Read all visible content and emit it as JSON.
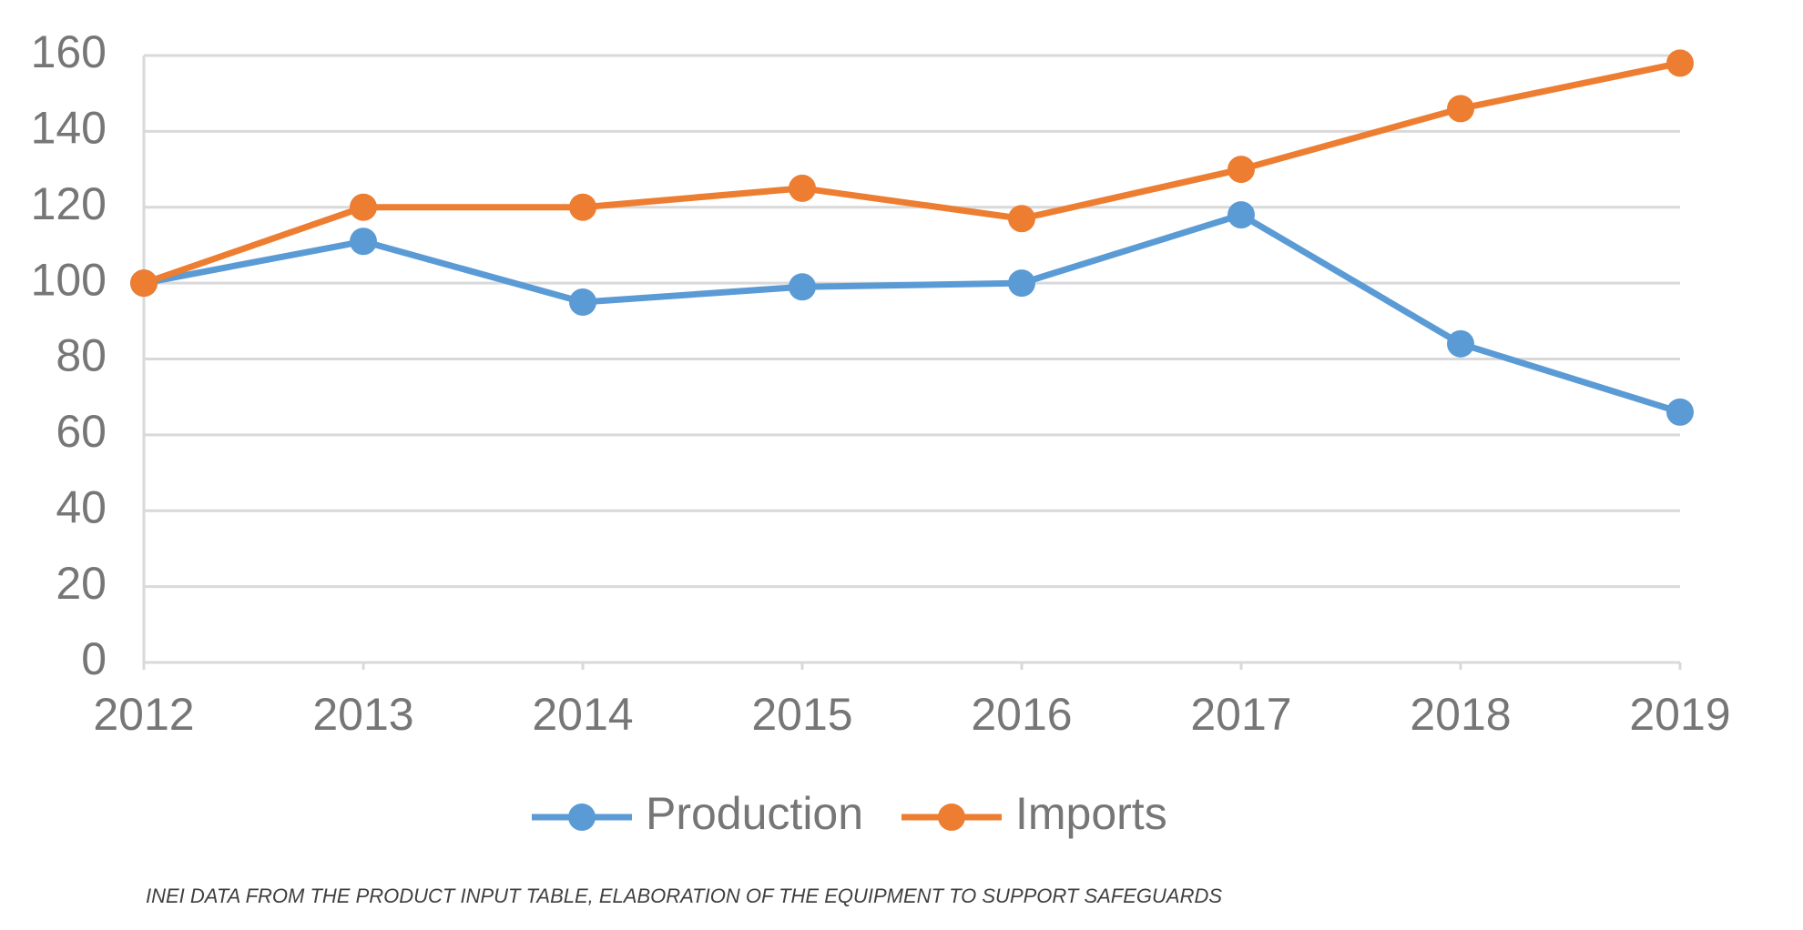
{
  "chart_data": {
    "type": "line",
    "categories": [
      "2012",
      "2013",
      "2014",
      "2015",
      "2016",
      "2017",
      "2018",
      "2019"
    ],
    "series": [
      {
        "name": "Production",
        "color": "#5b9bd5",
        "values": [
          100,
          111,
          95,
          99,
          100,
          118,
          84,
          66
        ]
      },
      {
        "name": "Imports",
        "color": "#ed7d31",
        "values": [
          100,
          120,
          120,
          125,
          117,
          130,
          146,
          158
        ]
      }
    ],
    "ylim": [
      0,
      160
    ],
    "yticks": [
      0,
      20,
      40,
      60,
      80,
      100,
      120,
      140,
      160
    ],
    "grid": true,
    "legend": "bottom",
    "note": "INEI DATA FROM THE PRODUCT INPUT TABLE, ELABORATION OF THE EQUIPMENT TO SUPPORT SAFEGUARDS"
  }
}
